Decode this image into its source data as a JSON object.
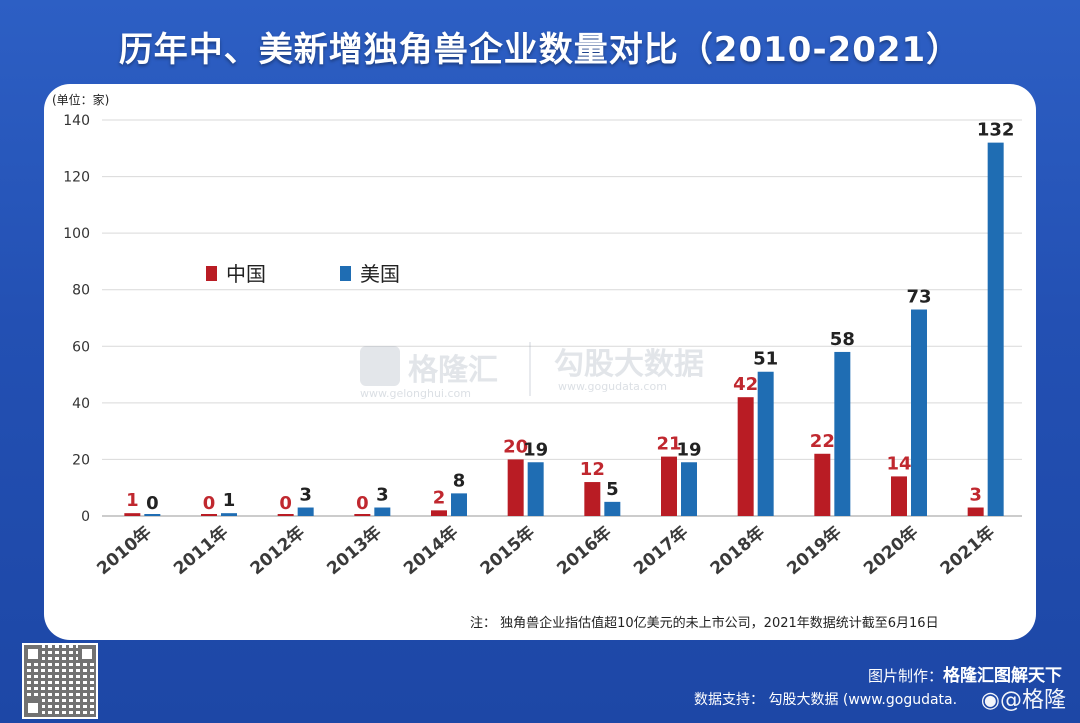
{
  "title": "历年中、美新增独角兽企业数量对比（2010-2021）",
  "unit_label": "(单位：家)",
  "legend": {
    "china": "中国",
    "usa": "美国"
  },
  "colors": {
    "china": "#b91c24",
    "usa": "#1f6db3",
    "china_label": "#c0282f",
    "usa_label": "#222222"
  },
  "watermark": {
    "logo1": "格隆汇",
    "sub1": "www.gelonghui.com",
    "logo2": "勾股大数据",
    "sub2": "www.gogudata.com"
  },
  "note": "注：  独角兽企业指估值超10亿美元的未上市公司，2021年数据统计截至6月16日",
  "footer": {
    "made_by_label": "图片制作：",
    "made_by_brand": "格隆汇图解天下",
    "data_support": "数据支持：  勾股大数据   (www.gogudata.",
    "weibo": "@格隆"
  },
  "chart_data": {
    "type": "bar",
    "categories": [
      "2010年",
      "2011年",
      "2012年",
      "2013年",
      "2014年",
      "2015年",
      "2016年",
      "2017年",
      "2018年",
      "2019年",
      "2020年",
      "2021年"
    ],
    "series": [
      {
        "name": "中国",
        "values": [
          1,
          0,
          0,
          0,
          2,
          20,
          12,
          21,
          42,
          22,
          14,
          3
        ]
      },
      {
        "name": "美国",
        "values": [
          0,
          1,
          3,
          3,
          8,
          19,
          5,
          19,
          51,
          58,
          73,
          132
        ]
      }
    ],
    "ylabel": "(单位：家)",
    "ylim": [
      0,
      140
    ],
    "yticks": [
      0,
      20,
      40,
      60,
      80,
      100,
      120,
      140
    ],
    "grid": true,
    "legend_position": "middle-left"
  }
}
